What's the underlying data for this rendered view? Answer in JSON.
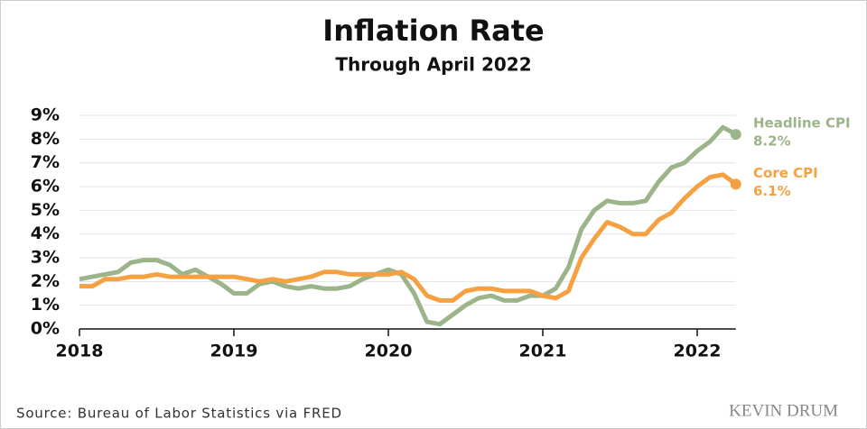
{
  "chart_data": {
    "type": "line",
    "title": "Inflation Rate",
    "subtitle": "Through April 2022",
    "categories": [
      "2018",
      null,
      null,
      null,
      null,
      null,
      null,
      null,
      null,
      null,
      null,
      null,
      "2019",
      null,
      null,
      null,
      null,
      null,
      null,
      null,
      null,
      null,
      null,
      null,
      "2020",
      null,
      null,
      null,
      null,
      null,
      null,
      null,
      null,
      null,
      null,
      null,
      "2021",
      null,
      null,
      null,
      null,
      null,
      null,
      null,
      null,
      null,
      null,
      null,
      "2022",
      null,
      null,
      null
    ],
    "series": [
      {
        "name": "Headline CPI",
        "color": "#9cb48a",
        "values": [
          2.1,
          2.2,
          2.3,
          2.4,
          2.8,
          2.9,
          2.9,
          2.7,
          2.3,
          2.5,
          2.2,
          1.9,
          1.5,
          1.5,
          1.9,
          2.0,
          1.8,
          1.7,
          1.8,
          1.7,
          1.7,
          1.8,
          2.1,
          2.3,
          2.5,
          2.3,
          1.5,
          0.3,
          0.2,
          0.6,
          1.0,
          1.3,
          1.4,
          1.2,
          1.2,
          1.4,
          1.4,
          1.7,
          2.6,
          4.2,
          5.0,
          5.4,
          5.3,
          5.3,
          5.4,
          6.2,
          6.8,
          7.0,
          7.5,
          7.9,
          8.5,
          8.2
        ],
        "value_labels": [
          null,
          null,
          null,
          null,
          null,
          null,
          null,
          null,
          null,
          null,
          null,
          null,
          null,
          null,
          null,
          null,
          null,
          null,
          null,
          null,
          null,
          null,
          null,
          null,
          null,
          null,
          null,
          null,
          null,
          null,
          null,
          null,
          null,
          null,
          null,
          null,
          null,
          null,
          null,
          null,
          null,
          null,
          null,
          null,
          null,
          null,
          null,
          null,
          null,
          null,
          null,
          "8.2%"
        ]
      },
      {
        "name": "Core CPI",
        "color": "#f5a142",
        "values": [
          1.8,
          1.8,
          2.1,
          2.1,
          2.2,
          2.2,
          2.3,
          2.2,
          2.2,
          2.2,
          2.2,
          2.2,
          2.2,
          2.1,
          2.0,
          2.1,
          2.0,
          2.1,
          2.2,
          2.4,
          2.4,
          2.3,
          2.3,
          2.3,
          2.3,
          2.4,
          2.1,
          1.4,
          1.2,
          1.2,
          1.6,
          1.7,
          1.7,
          1.6,
          1.6,
          1.6,
          1.4,
          1.3,
          1.6,
          3.0,
          3.8,
          4.5,
          4.3,
          4.0,
          4.0,
          4.6,
          4.9,
          5.5,
          6.0,
          6.4,
          6.5,
          6.1
        ],
        "value_labels": [
          null,
          null,
          null,
          null,
          null,
          null,
          null,
          null,
          null,
          null,
          null,
          null,
          null,
          null,
          null,
          null,
          null,
          null,
          null,
          null,
          null,
          null,
          null,
          null,
          null,
          null,
          null,
          null,
          null,
          null,
          null,
          null,
          null,
          null,
          null,
          null,
          null,
          null,
          null,
          null,
          null,
          null,
          null,
          null,
          null,
          null,
          null,
          null,
          null,
          null,
          null,
          "6.1%"
        ]
      }
    ],
    "ylim": [
      0,
      9
    ],
    "yticks": [
      {
        "value": 0,
        "label": "0%"
      },
      {
        "value": 1,
        "label": "1%"
      },
      {
        "value": 2,
        "label": "2%"
      },
      {
        "value": 3,
        "label": "3%"
      },
      {
        "value": 4,
        "label": "4%"
      },
      {
        "value": 5,
        "label": "5%"
      },
      {
        "value": 6,
        "label": "6%"
      },
      {
        "value": 7,
        "label": "7%"
      },
      {
        "value": 8,
        "label": "8%"
      },
      {
        "value": 9,
        "label": "9%"
      }
    ],
    "grid": true,
    "source": "Source: Bureau of Labor Statistics via FRED",
    "credit": "KEVIN DRUM"
  }
}
